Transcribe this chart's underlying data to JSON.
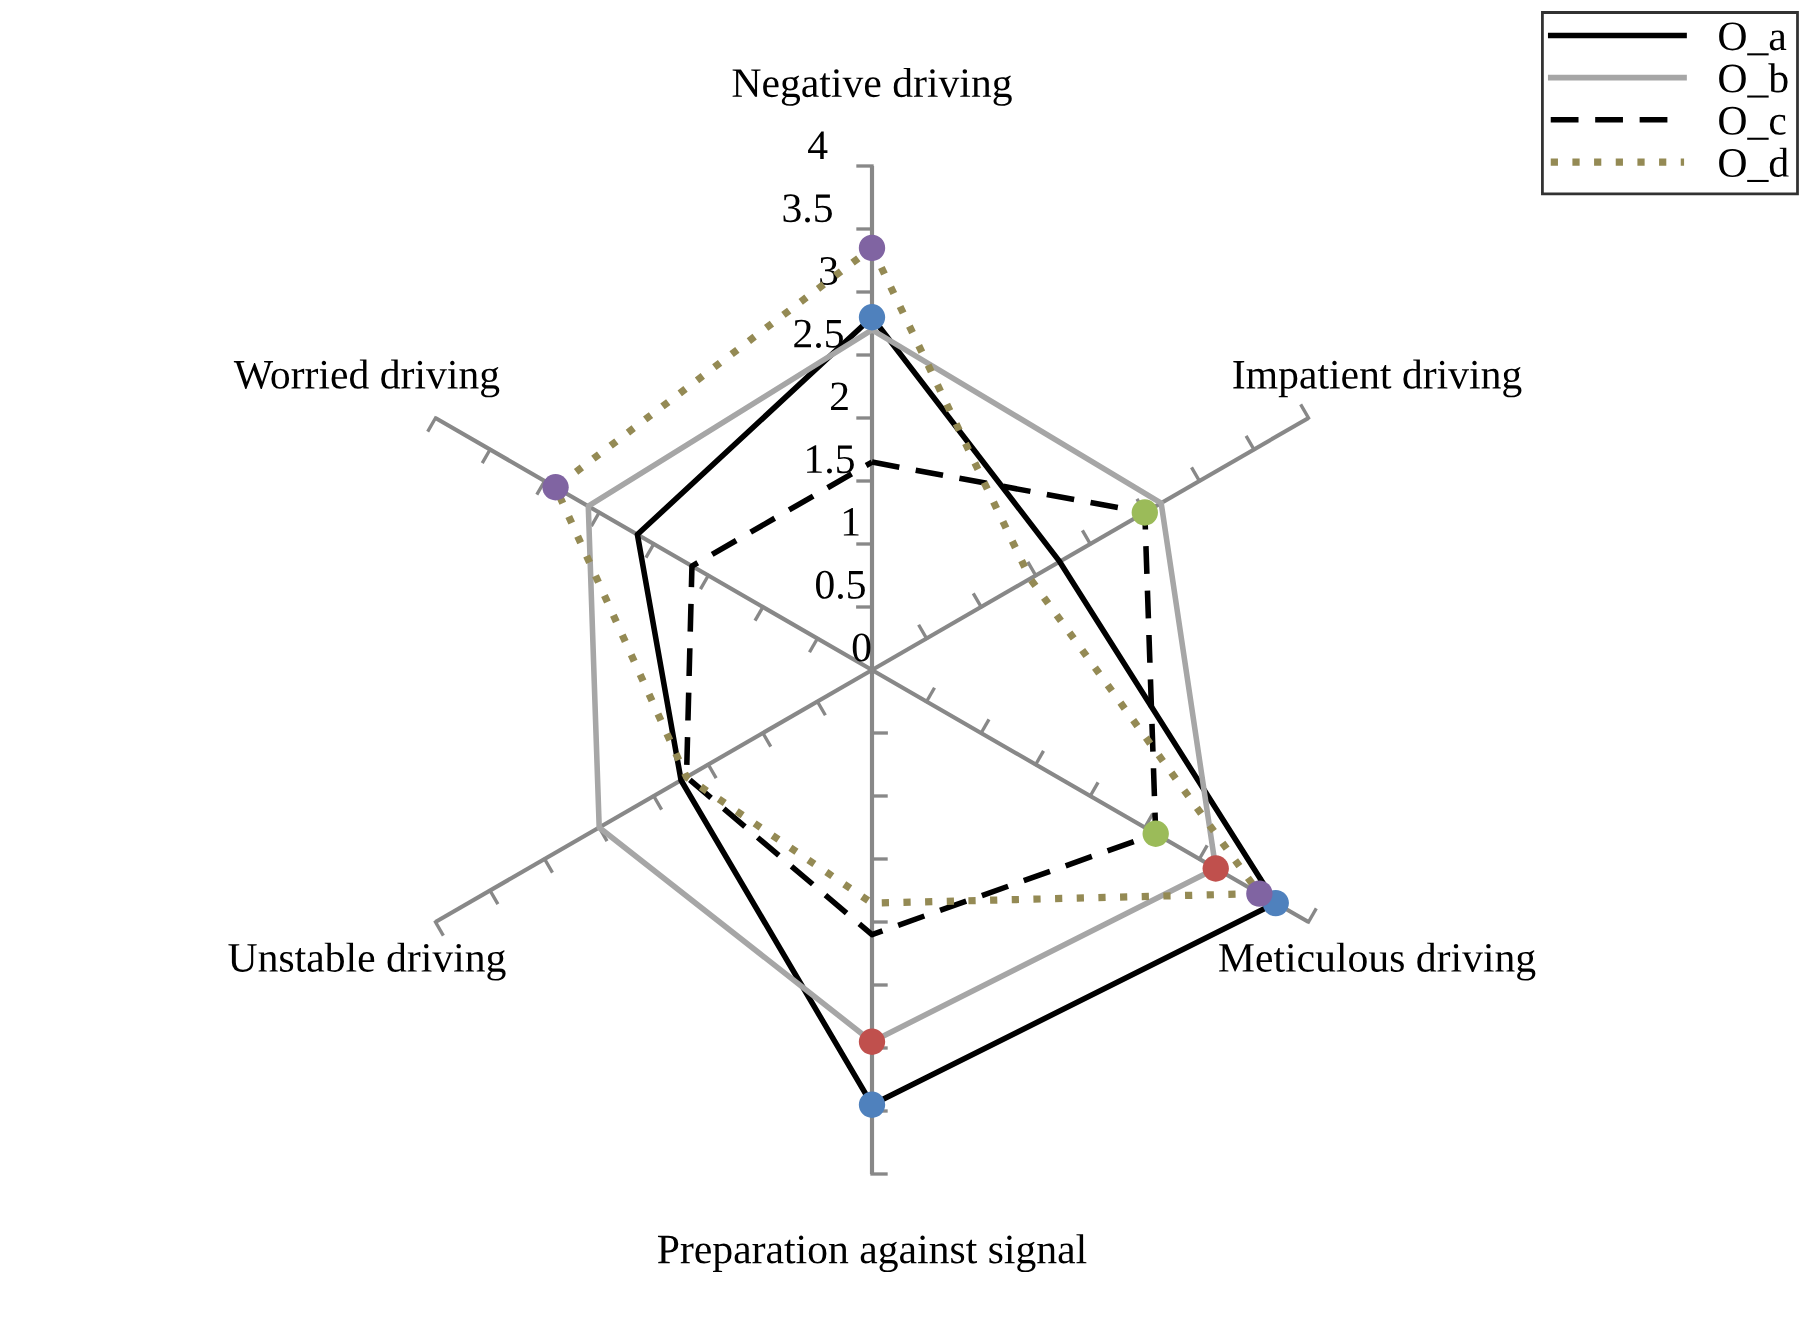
{
  "chart_data": {
    "type": "radar",
    "categories": [
      "Negative driving",
      "Impatient driving",
      "Meticulous driving",
      "Preparation against signal",
      "Unstable driving",
      "Worried driving"
    ],
    "series": [
      {
        "name": "O_a",
        "color": "#000000",
        "line_style": "solid",
        "values": [
          2.8,
          1.72,
          3.7,
          3.45,
          1.75,
          2.15
        ],
        "marker": "circle",
        "colors": [
          "#4f81bd",
          null,
          "#4f81bd",
          "#4f81bd",
          null,
          null
        ]
      },
      {
        "name": "O_b",
        "color": "#a6a6a6",
        "line_style": "solid",
        "values": [
          2.7,
          2.65,
          3.15,
          2.95,
          2.5,
          2.6
        ],
        "marker": "circle",
        "colors": [
          null,
          null,
          "#c0504d",
          "#c0504d",
          null,
          null
        ]
      },
      {
        "name": "O_c",
        "color": "#000000",
        "line_style": "dashed",
        "values": [
          1.65,
          2.5,
          2.6,
          2.1,
          1.7,
          1.65
        ],
        "marker": "circle",
        "colors": [
          null,
          "#9bbb59",
          "#9bbb59",
          null,
          null,
          null
        ]
      },
      {
        "name": "O_d",
        "color": "#948a54",
        "line_style": "dotted",
        "values": [
          3.35,
          1.45,
          3.55,
          1.85,
          1.7,
          2.9
        ],
        "marker": "circle",
        "colors": [
          "#8064a2",
          null,
          "#8064a2",
          null,
          null,
          "#8064a2"
        ]
      }
    ],
    "ylim": [
      0,
      4
    ],
    "yticks": [
      0,
      0.5,
      1,
      1.5,
      2,
      2.5,
      3,
      3.5,
      4
    ],
    "grid": "x",
    "legend": "top right"
  }
}
